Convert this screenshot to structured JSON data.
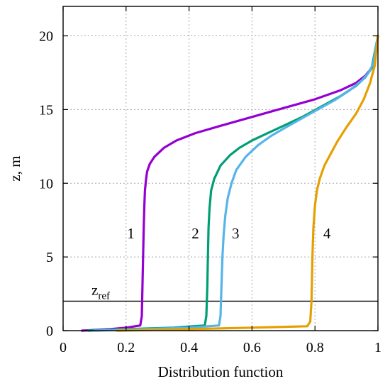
{
  "chart_data": {
    "type": "line",
    "title": "",
    "xlabel": "Distribution function",
    "ylabel": "z, m",
    "xlim": [
      0,
      1
    ],
    "ylim": [
      0,
      22
    ],
    "xticks": [
      0,
      0.2,
      0.4,
      0.6,
      0.8,
      1
    ],
    "xtick_labels": [
      "0",
      "0.2",
      "0.4",
      "0.6",
      "0.8",
      "1"
    ],
    "yticks": [
      0,
      5,
      10,
      15,
      20
    ],
    "ytick_labels": [
      "0",
      "5",
      "10",
      "15",
      "20"
    ],
    "grid": true,
    "series": [
      {
        "label": "1",
        "color": "#9400d3",
        "x": [
          0.06,
          0.15,
          0.2,
          0.245,
          0.25,
          0.252,
          0.254,
          0.256,
          0.258,
          0.26,
          0.263,
          0.267,
          0.275,
          0.29,
          0.32,
          0.36,
          0.42,
          0.5,
          0.6,
          0.7,
          0.8,
          0.88,
          0.93,
          0.96,
          0.98,
          0.99,
          1.0
        ],
        "y": [
          0.0,
          0.1,
          0.2,
          0.35,
          1.0,
          3.0,
          5.0,
          7.0,
          8.5,
          9.5,
          10.2,
          10.8,
          11.3,
          11.8,
          12.4,
          12.9,
          13.4,
          13.9,
          14.5,
          15.1,
          15.7,
          16.3,
          16.8,
          17.3,
          17.8,
          18.5,
          20.0
        ]
      },
      {
        "label": "2",
        "color": "#009e73",
        "x": [
          0.08,
          0.2,
          0.35,
          0.45,
          0.455,
          0.458,
          0.46,
          0.462,
          0.465,
          0.47,
          0.48,
          0.5,
          0.53,
          0.56,
          0.6,
          0.65,
          0.7,
          0.76,
          0.82,
          0.88,
          0.93,
          0.96,
          0.98,
          1.0
        ],
        "y": [
          0.0,
          0.1,
          0.2,
          0.35,
          1.0,
          3.0,
          5.0,
          7.0,
          8.3,
          9.5,
          10.3,
          11.2,
          11.9,
          12.4,
          12.9,
          13.4,
          13.9,
          14.5,
          15.2,
          15.9,
          16.6,
          17.2,
          17.8,
          20.0
        ]
      },
      {
        "label": "3",
        "color": "#56b4e9",
        "x": [
          0.1,
          0.25,
          0.4,
          0.495,
          0.5,
          0.503,
          0.506,
          0.51,
          0.515,
          0.523,
          0.535,
          0.55,
          0.58,
          0.62,
          0.66,
          0.7,
          0.75,
          0.8,
          0.86,
          0.91,
          0.95,
          0.97,
          0.985,
          1.0
        ],
        "y": [
          0.0,
          0.1,
          0.2,
          0.35,
          1.0,
          3.0,
          5.0,
          6.5,
          7.8,
          9.0,
          10.0,
          10.9,
          11.8,
          12.6,
          13.2,
          13.7,
          14.3,
          14.9,
          15.6,
          16.3,
          17.0,
          17.5,
          18.1,
          20.0
        ]
      },
      {
        "label": "4",
        "color": "#e69f00",
        "x": [
          0.17,
          0.4,
          0.6,
          0.775,
          0.785,
          0.789,
          0.792,
          0.795,
          0.8,
          0.806,
          0.815,
          0.83,
          0.85,
          0.87,
          0.9,
          0.93,
          0.955,
          0.975,
          0.99,
          1.0
        ],
        "y": [
          0.0,
          0.1,
          0.2,
          0.3,
          0.6,
          2.0,
          5.0,
          7.0,
          8.5,
          9.5,
          10.3,
          11.2,
          12.0,
          12.8,
          13.8,
          14.7,
          15.7,
          16.8,
          18.0,
          20.0
        ]
      }
    ],
    "annotations": [
      {
        "id": "zref",
        "base": "z",
        "sub": "ref",
        "y": 2.0
      }
    ]
  }
}
